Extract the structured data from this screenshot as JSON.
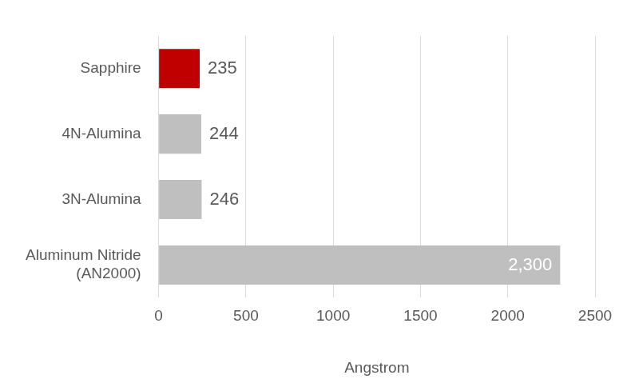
{
  "chart_data": {
    "type": "bar",
    "orientation": "horizontal",
    "categories": [
      "Sapphire",
      "4N-Alumina",
      "3N-Alumina",
      "Aluminum Nitride (AN2000)"
    ],
    "values": [
      235,
      244,
      246,
      2300
    ],
    "value_labels": [
      "235",
      "244",
      "246",
      "2,300"
    ],
    "data_labels": true,
    "colors": [
      "#c00000",
      "#bfbfbf",
      "#bfbfbf",
      "#bfbfbf"
    ],
    "x_label": "Angstrom",
    "xlim": [
      0,
      2500
    ],
    "xticks": [
      0,
      500,
      1000,
      1500,
      2000,
      2500
    ],
    "grid": true
  }
}
